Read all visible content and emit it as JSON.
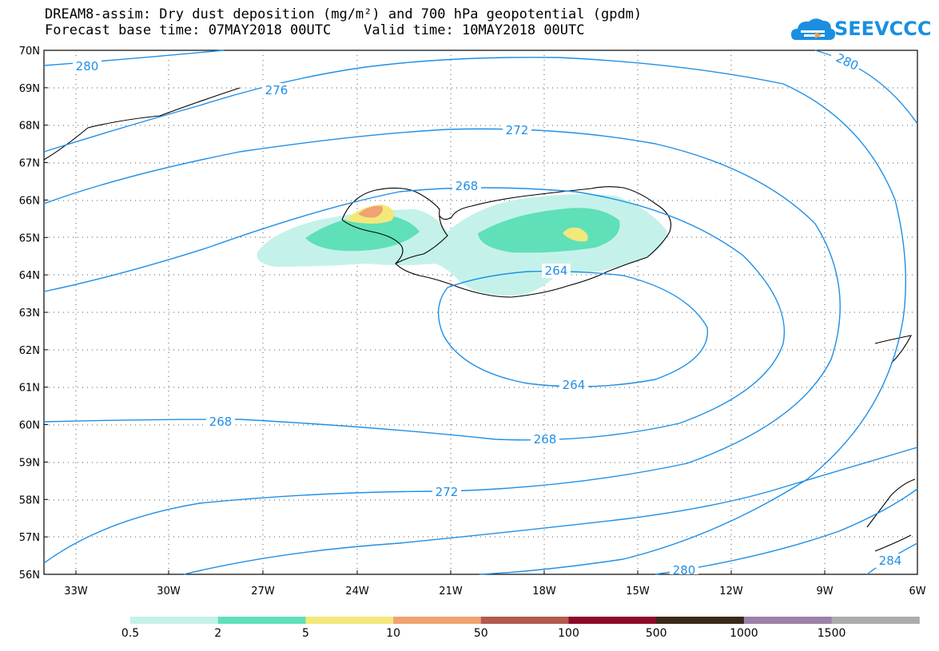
{
  "header": {
    "title_line1": "DREAM8-assim: Dry dust deposition (mg/m²) and 700 hPa geopotential (gpdm)",
    "title_line2": "Forecast base time: 07MAY2018 00UTC    Valid time: 10MAY2018 00UTC"
  },
  "logo": {
    "text": "SEEVCCC",
    "icon": "cloud-icon",
    "color": "#1a8fe0"
  },
  "map": {
    "lat_labels": [
      "70N",
      "69N",
      "68N",
      "67N",
      "66N",
      "65N",
      "64N",
      "63N",
      "62N",
      "61N",
      "60N",
      "59N",
      "58N",
      "57N",
      "56N"
    ],
    "lon_labels": [
      "33W",
      "30W",
      "27W",
      "24W",
      "21W",
      "18W",
      "15W",
      "12W",
      "9W",
      "6W"
    ],
    "contour_color": "#1f8fe6",
    "contour_labels": [
      "280",
      "276",
      "272",
      "268",
      "264",
      "264",
      "268",
      "268",
      "272",
      "280",
      "280",
      "284"
    ]
  },
  "colorbar": {
    "labels": [
      "0.5",
      "2",
      "5",
      "10",
      "50",
      "100",
      "500",
      "1000",
      "1500"
    ],
    "colors": [
      "#c4f2ea",
      "#5fe0b8",
      "#f3e87a",
      "#f0a270",
      "#b25a4e",
      "#8c0a28",
      "#3a2818",
      "#9c80a8",
      "#acacac"
    ]
  }
}
